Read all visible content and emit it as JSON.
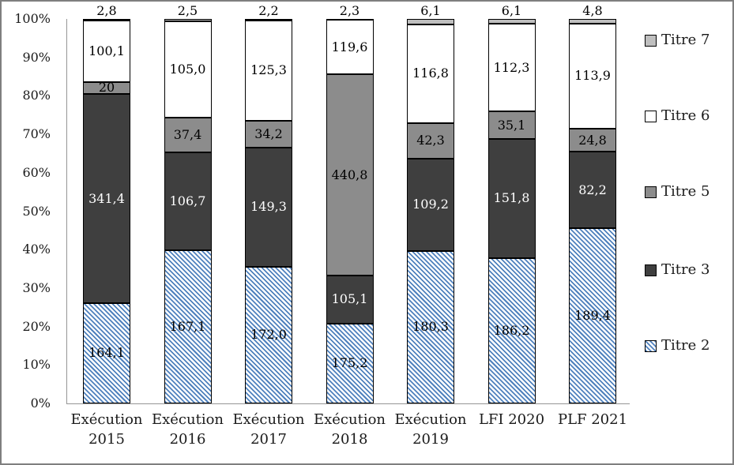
{
  "chart_data": {
    "type": "bar",
    "variant": "stacked-100-percent",
    "title": "",
    "categories": [
      {
        "lines": [
          "Exécution",
          "2015"
        ]
      },
      {
        "lines": [
          "Exécution",
          "2016"
        ]
      },
      {
        "lines": [
          "Exécution",
          "2017"
        ]
      },
      {
        "lines": [
          "Exécution",
          "2018"
        ]
      },
      {
        "lines": [
          "Exécution",
          "2019"
        ]
      },
      {
        "lines": [
          "LFI 2020"
        ]
      },
      {
        "lines": [
          "PLF 2021"
        ]
      }
    ],
    "series": [
      {
        "name": "Titre 2",
        "fill": "hatch",
        "hatch_color": "#4f81bd",
        "hatch_bg": "#ffffff",
        "label_color": "#000000",
        "values": [
          164.1,
          167.1,
          172.0,
          175.2,
          180.3,
          186.2,
          189.4
        ],
        "labels": [
          "164,1",
          "167,1",
          "172,0",
          "175,2",
          "180,3",
          "186,2",
          "189,4"
        ]
      },
      {
        "name": "Titre 3",
        "fill": "#3f3f3f",
        "label_color": "#ffffff",
        "values": [
          341.4,
          106.7,
          149.3,
          105.1,
          109.2,
          151.8,
          82.2
        ],
        "labels": [
          "341,4",
          "106,7",
          "149,3",
          "105,1",
          "109,2",
          "151,8",
          "82,2"
        ]
      },
      {
        "name": "Titre 5",
        "fill": "#8c8c8c",
        "label_color": "#000000",
        "values": [
          20,
          37.4,
          34.2,
          440.8,
          42.3,
          35.1,
          24.8
        ],
        "labels": [
          "20",
          "37,4",
          "34,2",
          "440,8",
          "42,3",
          "35,1",
          "24,8"
        ]
      },
      {
        "name": "Titre 6",
        "fill": "#ffffff",
        "label_color": "#000000",
        "values": [
          100.1,
          105.0,
          125.3,
          119.6,
          116.8,
          112.3,
          113.9
        ],
        "labels": [
          "100,1",
          "105,0",
          "125,3",
          "119,6",
          "116,8",
          "112,3",
          "113,9"
        ]
      },
      {
        "name": "Titre 7",
        "fill": "#bfbfbf",
        "label_color": "#000000",
        "label_outside": true,
        "values": [
          2.8,
          2.5,
          2.2,
          2.3,
          6.1,
          6.1,
          4.8
        ],
        "labels": [
          "2,8",
          "2,5",
          "2,2",
          "2,3",
          "6,1",
          "6,1",
          "4,8"
        ]
      }
    ],
    "y_axis": {
      "ticks": [
        "100%",
        "90%",
        "80%",
        "70%",
        "60%",
        "50%",
        "40%",
        "30%",
        "20%",
        "10%",
        "0%"
      ],
      "min": "0%",
      "max": "100%",
      "gridlines": false
    },
    "legend": {
      "position": "right",
      "entries": [
        "Titre 7",
        "Titre 6",
        "Titre 5",
        "Titre 3",
        "Titre 2"
      ]
    },
    "colors": {
      "axis": "#969696",
      "frame_border": "#7f7f7f",
      "segment_border": "#000000",
      "background": "#ffffff"
    }
  }
}
